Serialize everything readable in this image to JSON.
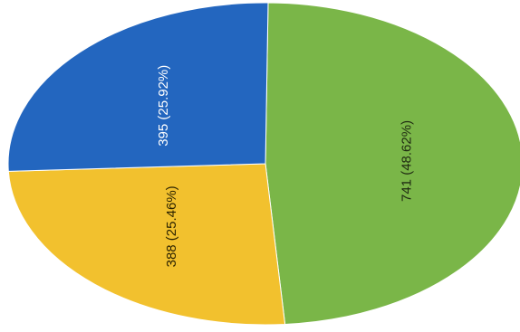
{
  "chart_data": {
    "type": "pie",
    "slices": [
      {
        "value": 741,
        "percent": "48.62%",
        "label": "741 (48.62%)",
        "color": "#7ab648",
        "label_color": "#1f2a12"
      },
      {
        "value": 388,
        "percent": "25.46%",
        "label": "388 (25.46%)",
        "color": "#f2c12e",
        "label_color": "#2b2200"
      },
      {
        "value": 395,
        "percent": "25.92%",
        "label": "395 (25.92%)",
        "color": "#2366bf",
        "label_color": "#ffffff"
      }
    ],
    "label_rotation": "vertical",
    "legend": "none",
    "title": ""
  }
}
